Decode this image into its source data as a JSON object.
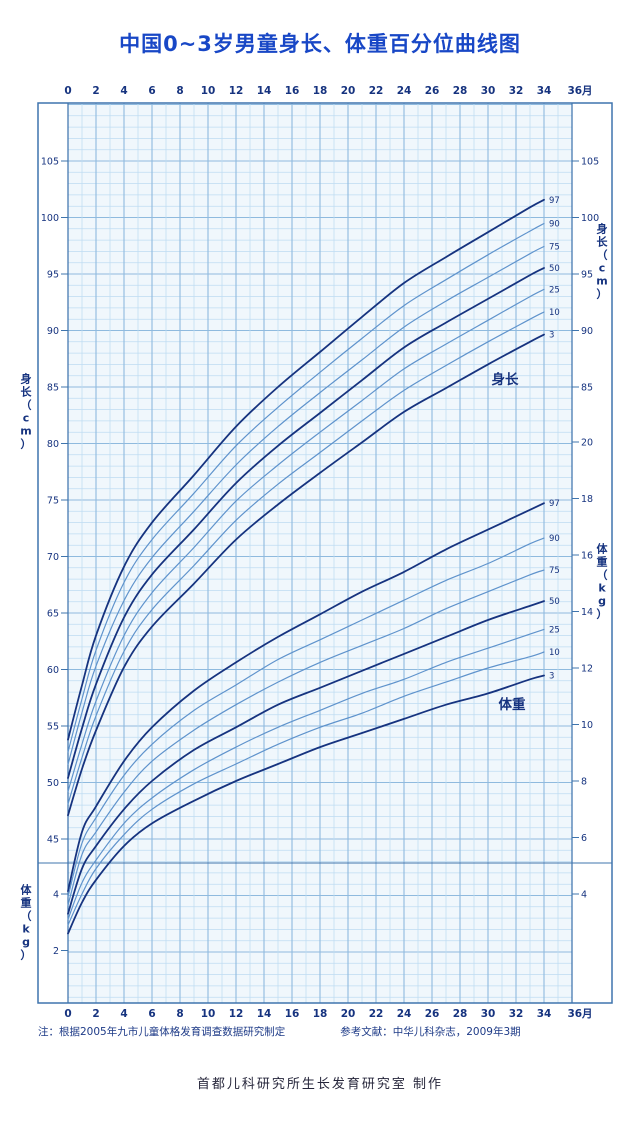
{
  "title": "中国0~3岁男童身长、体重百分位曲线图",
  "axis": {
    "month_ticks": [
      0,
      2,
      4,
      6,
      8,
      10,
      12,
      14,
      16,
      18,
      20,
      22,
      24,
      26,
      28,
      30,
      32,
      34
    ],
    "month_last_label": "36月",
    "left_height_ticks": [
      105,
      100,
      95,
      90,
      85,
      80,
      75,
      70,
      65,
      60,
      55,
      50,
      45
    ],
    "left_weight_ticks": [
      4,
      2
    ],
    "right_height_ticks": [
      105,
      100,
      95,
      90,
      85
    ],
    "right_weight_ticks": [
      20,
      18,
      16,
      14,
      12,
      10,
      8,
      6,
      4
    ],
    "left_height_title": "身长（cm）",
    "left_weight_title": "体重（kg）",
    "right_height_title": "身长（cm）",
    "right_weight_title": "体重（kg）"
  },
  "curve_labels": {
    "height": "身长",
    "weight": "体重"
  },
  "note": "注：根据2005年九市儿童体格发育调查数据研究制定",
  "reference": "参考文献：中华儿科杂志，2009年3期",
  "footer": "首都儿科研究所生长发育研究室 制作",
  "colors": {
    "title": "#1847c6",
    "curve_dark": "#16337f",
    "curve_light": "#5f93cc",
    "grid_minor": "#bedcf2",
    "grid_major": "#8fbade",
    "axis": "#3f74ad",
    "label_text": "#16337f",
    "note_text": "#1d3a87",
    "footer_text": "#26263b",
    "plot_bg": "#f0f7fc"
  },
  "chart_data": {
    "type": "line",
    "title": "中国0~3岁男童身长、体重百分位曲线图",
    "x_axis_unit": "月",
    "x_range": [
      0,
      36
    ],
    "grid": true,
    "months": [
      0,
      1,
      2,
      4,
      6,
      9,
      12,
      15,
      18,
      21,
      24,
      27,
      30,
      33,
      36
    ],
    "percentiles": [
      "97",
      "90",
      "75",
      "50",
      "25",
      "10",
      "3"
    ],
    "emphasized_percentiles": [
      "97",
      "50",
      "3"
    ],
    "height_cm": {
      "label": "身长",
      "unit": "cm",
      "ylim": [
        43,
        110
      ],
      "axis_ticks": [
        45,
        50,
        55,
        60,
        65,
        70,
        75,
        80,
        85,
        90,
        95,
        100,
        105
      ],
      "series": [
        {
          "name": "97",
          "values": [
            53.8,
            58.6,
            63.0,
            69.1,
            73.0,
            77.2,
            81.5,
            85.0,
            88.1,
            91.2,
            94.2,
            96.5,
            98.7,
            100.9,
            102.9
          ]
        },
        {
          "name": "90",
          "values": [
            52.7,
            57.4,
            61.7,
            67.7,
            71.5,
            75.6,
            79.8,
            83.2,
            86.3,
            89.3,
            92.2,
            94.5,
            96.7,
            98.8,
            100.8
          ]
        },
        {
          "name": "75",
          "values": [
            51.6,
            56.2,
            60.3,
            66.1,
            69.9,
            74.0,
            78.1,
            81.5,
            84.5,
            87.4,
            90.3,
            92.6,
            94.7,
            96.8,
            98.7
          ]
        },
        {
          "name": "50",
          "values": [
            50.4,
            54.8,
            58.7,
            64.6,
            68.4,
            72.4,
            76.5,
            79.8,
            82.7,
            85.6,
            88.5,
            90.7,
            92.8,
            94.9,
            96.8
          ]
        },
        {
          "name": "25",
          "values": [
            49.2,
            53.4,
            57.2,
            63.0,
            66.8,
            70.8,
            74.9,
            78.1,
            81.0,
            83.8,
            86.6,
            88.8,
            90.9,
            93.0,
            94.9
          ]
        },
        {
          "name": "10",
          "values": [
            48.1,
            52.2,
            55.9,
            61.6,
            65.3,
            69.2,
            73.2,
            76.4,
            79.2,
            82.0,
            84.7,
            86.9,
            89.0,
            91.0,
            92.9
          ]
        },
        {
          "name": "3",
          "values": [
            47.1,
            51.2,
            54.6,
            60.2,
            63.8,
            67.6,
            71.5,
            74.6,
            77.4,
            80.1,
            82.8,
            84.9,
            87.0,
            89.0,
            90.9
          ]
        }
      ]
    },
    "weight_kg": {
      "label": "体重",
      "unit": "kg",
      "ylim": [
        0,
        20
      ],
      "axis_ticks": [
        2,
        4,
        6,
        8,
        10,
        12,
        14,
        16,
        18,
        20
      ],
      "series": [
        {
          "name": "97",
          "values": [
            4.1,
            6.2,
            7.1,
            8.7,
            9.9,
            11.2,
            12.2,
            13.1,
            13.9,
            14.7,
            15.4,
            16.2,
            16.9,
            17.6,
            18.3
          ]
        },
        {
          "name": "90",
          "values": [
            3.9,
            5.8,
            6.7,
            8.2,
            9.3,
            10.5,
            11.4,
            12.3,
            13.0,
            13.7,
            14.4,
            15.1,
            15.7,
            16.4,
            17.0
          ]
        },
        {
          "name": "75",
          "values": [
            3.6,
            5.4,
            6.2,
            7.6,
            8.7,
            9.8,
            10.7,
            11.5,
            12.2,
            12.8,
            13.4,
            14.1,
            14.7,
            15.3,
            15.8
          ]
        },
        {
          "name": "50",
          "values": [
            3.3,
            4.9,
            5.7,
            7.0,
            8.0,
            9.1,
            9.9,
            10.7,
            11.3,
            11.9,
            12.5,
            13.1,
            13.7,
            14.2,
            14.7
          ]
        },
        {
          "name": "25",
          "values": [
            3.1,
            4.4,
            5.2,
            6.5,
            7.4,
            8.4,
            9.2,
            9.9,
            10.5,
            11.1,
            11.6,
            12.2,
            12.7,
            13.2,
            13.7
          ]
        },
        {
          "name": "10",
          "values": [
            2.9,
            4.0,
            4.9,
            6.1,
            7.0,
            7.9,
            8.6,
            9.3,
            9.9,
            10.4,
            11.0,
            11.5,
            12.0,
            12.4,
            12.9
          ]
        },
        {
          "name": "3",
          "values": [
            2.6,
            3.7,
            4.5,
            5.7,
            6.5,
            7.3,
            8.0,
            8.6,
            9.2,
            9.7,
            10.2,
            10.7,
            11.1,
            11.6,
            12.0
          ]
        }
      ]
    }
  }
}
